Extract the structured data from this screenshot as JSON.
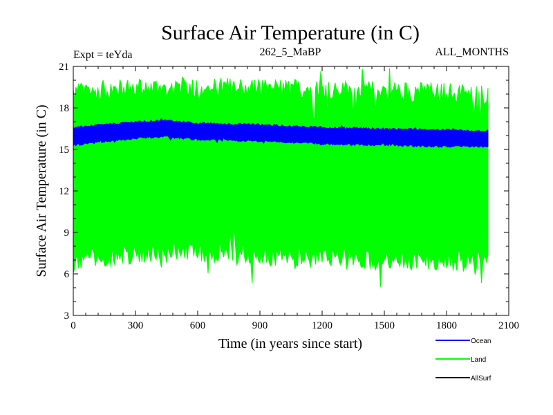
{
  "chart_data": {
    "type": "line",
    "title": "Surface Air Temperature (in C)",
    "experiment_label": "Expt = teYda",
    "subtitle": "262_5_MaBP",
    "period_label": "ALL_MONTHS",
    "xlabel": "Time (in years since start)",
    "ylabel": "Surface Air Temperature (in C)",
    "xlim": [
      0,
      2100
    ],
    "ylim": [
      3,
      21
    ],
    "xticks": [
      0,
      300,
      600,
      900,
      1200,
      1500,
      1800,
      2100
    ],
    "yticks": [
      3,
      6,
      9,
      12,
      15,
      18,
      21
    ],
    "legend_position": "bottom-right",
    "grid": false,
    "series": [
      {
        "name": "Land",
        "color": "#00ff00",
        "x_range": [
          0,
          2000
        ],
        "band_low": [
          {
            "x": 0,
            "y": 6.8
          },
          {
            "x": 300,
            "y": 7.4
          },
          {
            "x": 600,
            "y": 7.5
          },
          {
            "x": 900,
            "y": 7.2
          },
          {
            "x": 1200,
            "y": 7.0
          },
          {
            "x": 1500,
            "y": 6.9
          },
          {
            "x": 1800,
            "y": 6.8
          },
          {
            "x": 2000,
            "y": 6.7
          }
        ],
        "band_high": [
          {
            "x": 0,
            "y": 19.2
          },
          {
            "x": 300,
            "y": 19.5
          },
          {
            "x": 600,
            "y": 19.6
          },
          {
            "x": 900,
            "y": 19.5
          },
          {
            "x": 1200,
            "y": 19.4
          },
          {
            "x": 1500,
            "y": 19.3
          },
          {
            "x": 1800,
            "y": 19.2
          },
          {
            "x": 2000,
            "y": 19.0
          }
        ]
      },
      {
        "name": "Ocean",
        "color": "#0000ff",
        "x_range": [
          0,
          2000
        ],
        "band_low": [
          {
            "x": 0,
            "y": 15.3
          },
          {
            "x": 300,
            "y": 15.8
          },
          {
            "x": 450,
            "y": 15.9
          },
          {
            "x": 600,
            "y": 15.7
          },
          {
            "x": 900,
            "y": 15.6
          },
          {
            "x": 1200,
            "y": 15.4
          },
          {
            "x": 1500,
            "y": 15.3
          },
          {
            "x": 1800,
            "y": 15.2
          },
          {
            "x": 2000,
            "y": 15.2
          }
        ],
        "band_high": [
          {
            "x": 0,
            "y": 16.6
          },
          {
            "x": 300,
            "y": 17.0
          },
          {
            "x": 450,
            "y": 17.1
          },
          {
            "x": 600,
            "y": 16.9
          },
          {
            "x": 900,
            "y": 16.8
          },
          {
            "x": 1200,
            "y": 16.6
          },
          {
            "x": 1500,
            "y": 16.5
          },
          {
            "x": 1800,
            "y": 16.4
          },
          {
            "x": 2000,
            "y": 16.3
          }
        ]
      },
      {
        "name": "AllSurf",
        "color": "#000000",
        "x_range": [
          0,
          2000
        ],
        "band_low": [],
        "band_high": []
      }
    ],
    "legend": [
      {
        "name": "Ocean",
        "color": "#0000ff"
      },
      {
        "name": "Land",
        "color": "#00ff00"
      },
      {
        "name": "AllSurf",
        "color": "#000000"
      }
    ]
  }
}
